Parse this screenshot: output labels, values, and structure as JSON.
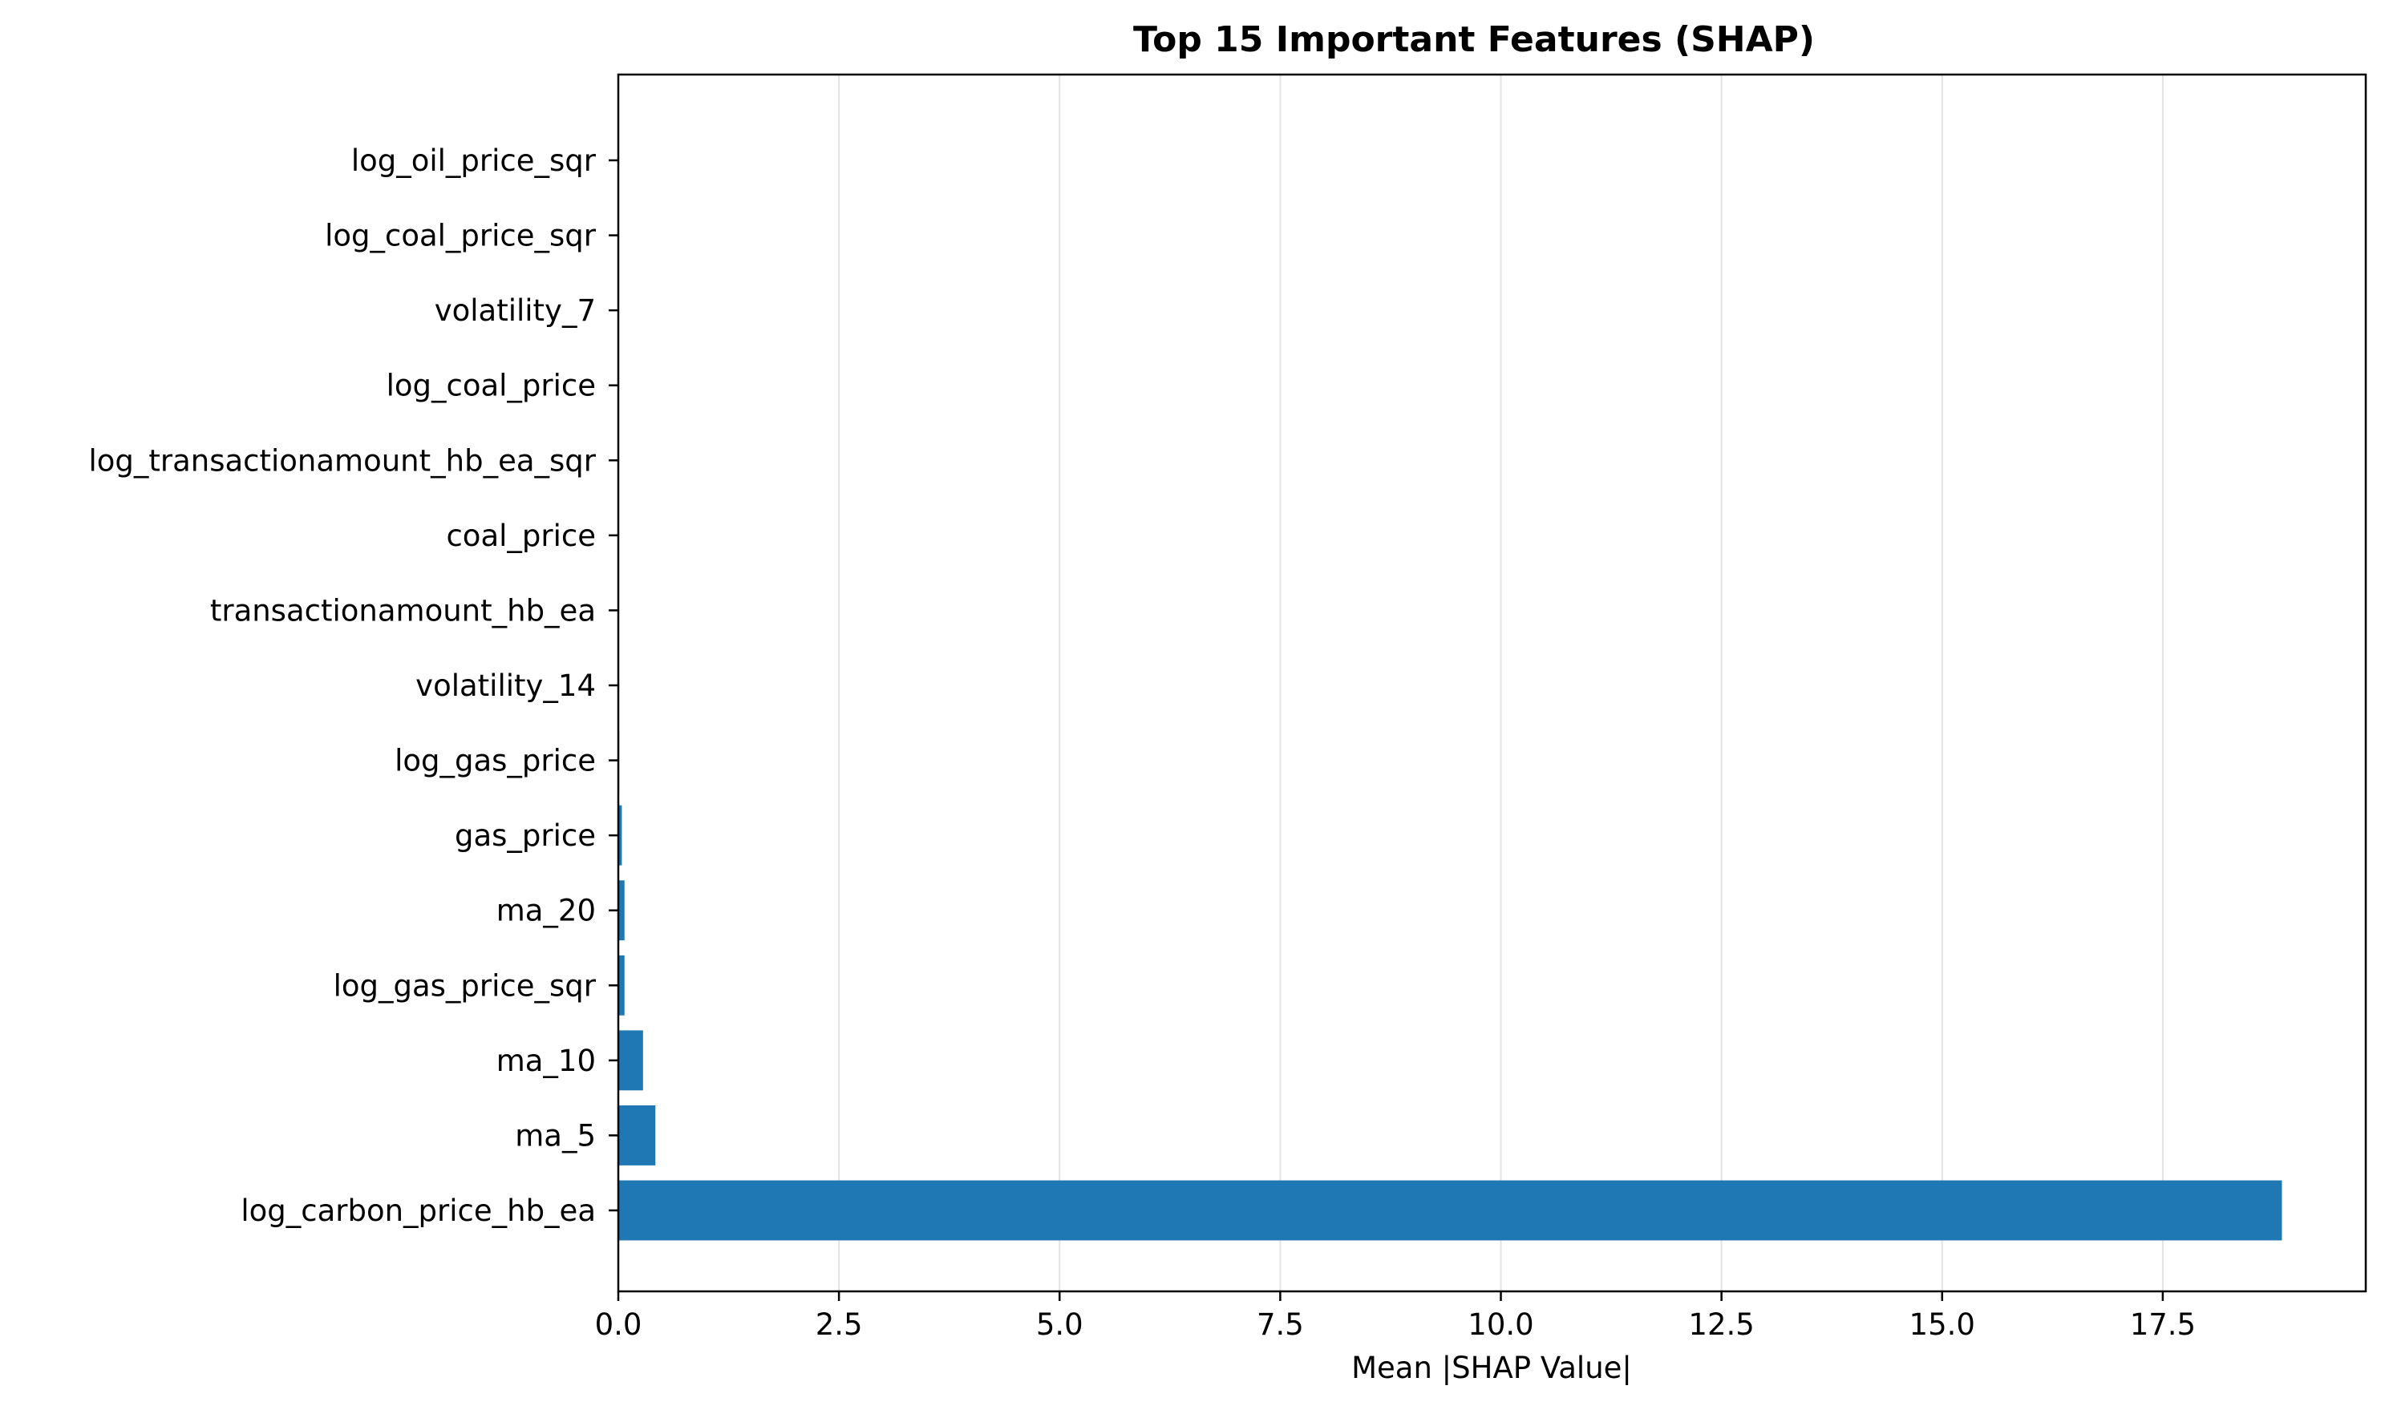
{
  "chart_data": {
    "type": "bar",
    "orientation": "horizontal",
    "title": "Top 15 Important Features (SHAP)",
    "xlabel": "Mean |SHAP Value|",
    "ylabel": "",
    "xlim": [
      0,
      19.8
    ],
    "xticks": [
      0.0,
      2.5,
      5.0,
      7.5,
      10.0,
      12.5,
      15.0,
      17.5
    ],
    "xtick_labels": [
      "0.0",
      "2.5",
      "5.0",
      "7.5",
      "10.0",
      "12.5",
      "15.0",
      "17.5"
    ],
    "grid": "vertical",
    "bar_color": "#1f77b4",
    "categories": [
      "log_carbon_price_hb_ea",
      "ma_5",
      "ma_10",
      "log_gas_price_sqr",
      "ma_20",
      "gas_price",
      "log_gas_price",
      "volatility_14",
      "transactionamount_hb_ea",
      "coal_price",
      "log_transactionamount_hb_ea_sqr",
      "log_coal_price",
      "volatility_7",
      "log_coal_price_sqr",
      "log_oil_price_sqr"
    ],
    "values": [
      18.85,
      0.42,
      0.28,
      0.07,
      0.07,
      0.04,
      0.01,
      0.005,
      0.004,
      0.003,
      0.002,
      0.002,
      0.001,
      0.001,
      0.001
    ]
  }
}
